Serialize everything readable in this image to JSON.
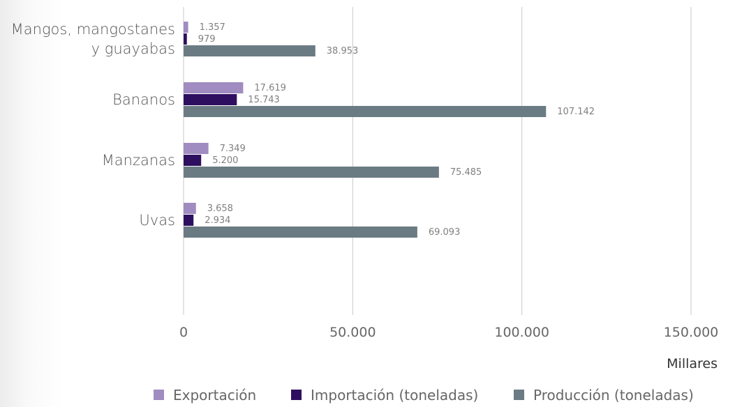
{
  "chart_data": {
    "type": "bar",
    "orientation": "horizontal",
    "categories": [
      "Mangos, mangostanes y guayabas",
      "Bananos",
      "Manzanas",
      "Uvas"
    ],
    "category_lines": [
      [
        "Mangos, mangostanes",
        "y guayabas"
      ],
      [
        "Bananos"
      ],
      [
        "Manzanas"
      ],
      [
        "Uvas"
      ]
    ],
    "series": [
      {
        "name": "Exportación",
        "color": "#a08cc0",
        "values": [
          1357,
          17619,
          7349,
          3658
        ],
        "labels": [
          "1.357",
          "17.619",
          "7.349",
          "3.658"
        ]
      },
      {
        "name": "Importación (toneladas)",
        "color": "#2e0f5f",
        "values": [
          979,
          15743,
          5200,
          2934
        ],
        "labels": [
          "979",
          "15.743",
          "5.200",
          "2.934"
        ]
      },
      {
        "name": "Producción (toneladas)",
        "color": "#6b7b83",
        "values": [
          38953,
          107142,
          75485,
          69093
        ],
        "labels": [
          "38.953",
          "107.142",
          "75.485",
          "69.093"
        ]
      }
    ],
    "xlim": [
      0,
      150000
    ],
    "xticks": [
      0,
      50000,
      100000,
      150000
    ],
    "xtick_labels": [
      "0",
      "50.000",
      "100.000",
      "150.000"
    ],
    "xlabel": "Millares",
    "grid": true,
    "legend_position": "bottom"
  }
}
